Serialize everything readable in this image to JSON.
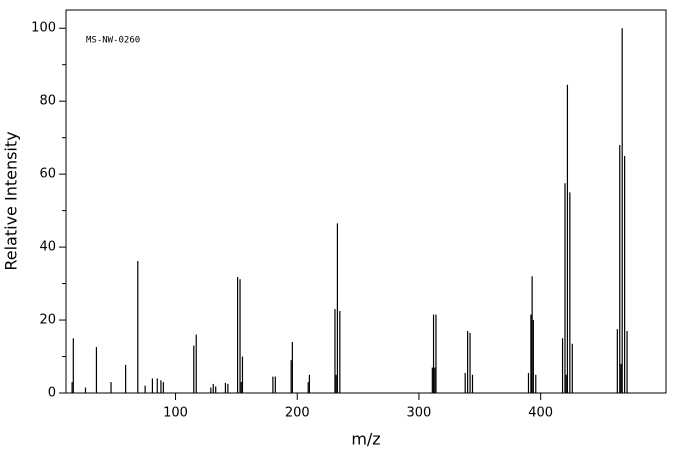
{
  "chart_data": {
    "type": "stem",
    "annotation": "MS-NW-0260",
    "xlabel": "m/z",
    "ylabel": "Relative Intensity",
    "x": [
      15,
      16,
      26,
      35,
      47,
      59,
      69,
      75,
      81,
      85,
      88,
      90,
      115,
      117,
      129,
      131,
      133,
      141,
      143,
      151,
      153,
      154,
      155,
      180,
      182,
      195,
      196,
      209,
      210,
      231,
      232,
      233,
      235,
      311,
      312,
      313,
      314,
      338,
      340,
      342,
      344,
      390,
      392,
      393,
      394,
      396,
      418,
      420,
      421,
      422,
      424,
      426,
      463,
      465,
      466,
      467,
      469,
      471
    ],
    "values": [
      3,
      15,
      1.5,
      12.6,
      3,
      7.7,
      36.2,
      2,
      4,
      4,
      3.5,
      3,
      13,
      16,
      1.5,
      2.5,
      1.8,
      2.8,
      2.5,
      31.8,
      31.2,
      3,
      10,
      4.5,
      4.5,
      9,
      14,
      3,
      5,
      23,
      5,
      46.5,
      22.5,
      7,
      21.5,
      7,
      21.5,
      5.5,
      17,
      16.5,
      5,
      5.5,
      21.5,
      32,
      20,
      5,
      15,
      57.5,
      5,
      84.5,
      55,
      13.5,
      17.5,
      68,
      8,
      100,
      65,
      17
    ],
    "color": "#000000",
    "xlim": [
      10,
      503
    ],
    "ylim": [
      0,
      105
    ],
    "xticks": [
      100,
      200,
      300,
      400
    ],
    "yticks": [
      0,
      20,
      40,
      60,
      80,
      100
    ],
    "yminorticks": [
      10,
      30,
      50,
      70,
      90
    ]
  }
}
